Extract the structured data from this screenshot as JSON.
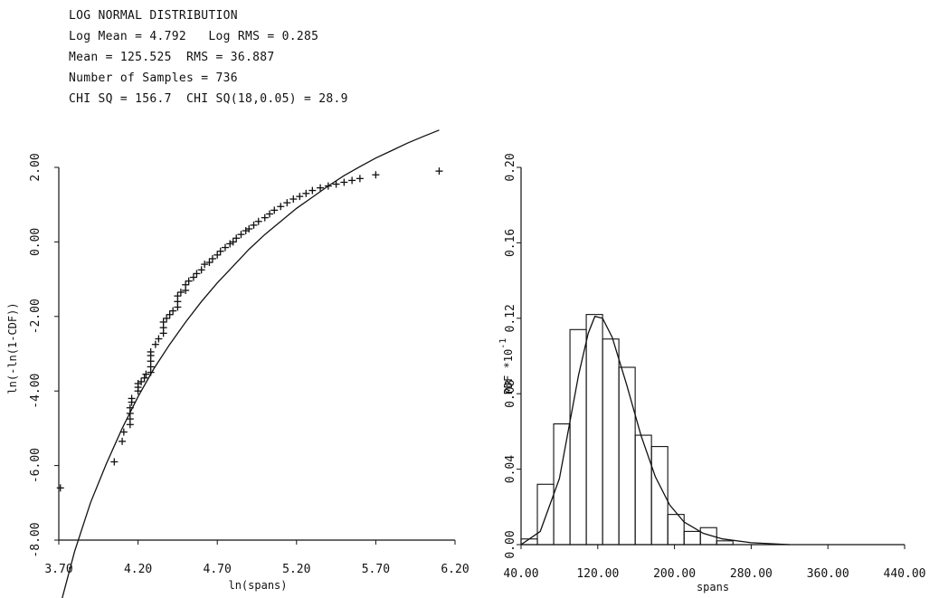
{
  "header": {
    "title": "LOG NORMAL DISTRIBUTION",
    "line1": "Log Mean = 4.792   Log RMS = 0.285",
    "line2": "Mean = 125.525  RMS = 36.887",
    "line3": "Number of Samples = 736",
    "line4": "CHI SQ = 156.7  CHI SQ(18,0.05) = 28.9"
  },
  "chart_data": [
    {
      "type": "scatter",
      "xlabel": "ln(spans)",
      "ylabel": "ln(-ln(1-CDF))",
      "xlim": [
        3.7,
        6.2
      ],
      "ylim": [
        -8.0,
        2.0
      ],
      "x_ticks": [
        "3.70",
        "4.20",
        "4.70",
        "5.20",
        "5.70",
        "6.20"
      ],
      "y_ticks": [
        "-8.00",
        "-6.00",
        "-4.00",
        "-2.00",
        "0.00",
        "2.00"
      ],
      "points": [
        [
          3.71,
          -6.6
        ],
        [
          4.05,
          -5.9
        ],
        [
          4.1,
          -5.35
        ],
        [
          4.11,
          -5.1
        ],
        [
          4.15,
          -4.9
        ],
        [
          4.15,
          -4.75
        ],
        [
          4.15,
          -4.6
        ],
        [
          4.15,
          -4.45
        ],
        [
          4.16,
          -4.3
        ],
        [
          4.16,
          -4.2
        ],
        [
          4.2,
          -4.0
        ],
        [
          4.2,
          -3.9
        ],
        [
          4.2,
          -3.8
        ],
        [
          4.22,
          -3.75
        ],
        [
          4.24,
          -3.65
        ],
        [
          4.25,
          -3.55
        ],
        [
          4.28,
          -3.5
        ],
        [
          4.28,
          -3.35
        ],
        [
          4.28,
          -3.2
        ],
        [
          4.28,
          -3.05
        ],
        [
          4.28,
          -2.95
        ],
        [
          4.31,
          -2.75
        ],
        [
          4.33,
          -2.6
        ],
        [
          4.36,
          -2.45
        ],
        [
          4.36,
          -2.3
        ],
        [
          4.36,
          -2.15
        ],
        [
          4.38,
          -2.05
        ],
        [
          4.4,
          -1.95
        ],
        [
          4.42,
          -1.85
        ],
        [
          4.45,
          -1.75
        ],
        [
          4.45,
          -1.6
        ],
        [
          4.45,
          -1.45
        ],
        [
          4.47,
          -1.35
        ],
        [
          4.5,
          -1.3
        ],
        [
          4.5,
          -1.15
        ],
        [
          4.52,
          -1.05
        ],
        [
          4.55,
          -0.95
        ],
        [
          4.57,
          -0.85
        ],
        [
          4.6,
          -0.75
        ],
        [
          4.62,
          -0.6
        ],
        [
          4.65,
          -0.55
        ],
        [
          4.67,
          -0.45
        ],
        [
          4.7,
          -0.35
        ],
        [
          4.72,
          -0.25
        ],
        [
          4.75,
          -0.15
        ],
        [
          4.78,
          -0.05
        ],
        [
          4.8,
          0.0
        ],
        [
          4.82,
          0.1
        ],
        [
          4.85,
          0.2
        ],
        [
          4.88,
          0.3
        ],
        [
          4.9,
          0.35
        ],
        [
          4.93,
          0.45
        ],
        [
          4.96,
          0.55
        ],
        [
          5.0,
          0.65
        ],
        [
          5.03,
          0.75
        ],
        [
          5.06,
          0.85
        ],
        [
          5.1,
          0.95
        ],
        [
          5.14,
          1.05
        ],
        [
          5.18,
          1.15
        ],
        [
          5.22,
          1.22
        ],
        [
          5.26,
          1.3
        ],
        [
          5.3,
          1.38
        ],
        [
          5.35,
          1.45
        ],
        [
          5.4,
          1.5
        ],
        [
          5.45,
          1.55
        ],
        [
          5.5,
          1.6
        ],
        [
          5.55,
          1.65
        ],
        [
          5.6,
          1.7
        ],
        [
          5.7,
          1.8
        ],
        [
          6.1,
          1.9
        ]
      ],
      "fit_curve": [
        [
          3.7,
          -9.9
        ],
        [
          3.8,
          -8.3
        ],
        [
          3.9,
          -7.0
        ],
        [
          4.0,
          -5.95
        ],
        [
          4.1,
          -5.0
        ],
        [
          4.2,
          -4.15
        ],
        [
          4.3,
          -3.4
        ],
        [
          4.4,
          -2.75
        ],
        [
          4.5,
          -2.15
        ],
        [
          4.6,
          -1.6
        ],
        [
          4.7,
          -1.1
        ],
        [
          4.8,
          -0.65
        ],
        [
          4.9,
          -0.2
        ],
        [
          5.0,
          0.2
        ],
        [
          5.1,
          0.55
        ],
        [
          5.2,
          0.9
        ],
        [
          5.3,
          1.2
        ],
        [
          5.4,
          1.5
        ],
        [
          5.5,
          1.78
        ],
        [
          5.6,
          2.02
        ],
        [
          5.7,
          2.25
        ],
        [
          5.8,
          2.45
        ],
        [
          5.9,
          2.65
        ],
        [
          6.0,
          2.83
        ],
        [
          6.1,
          3.0
        ]
      ]
    },
    {
      "type": "bar",
      "xlabel": "spans",
      "ylabel": "PDF *10",
      "ylabel_exp": "-1",
      "xlim": [
        40,
        440
      ],
      "ylim": [
        0.0,
        0.2
      ],
      "x_ticks": [
        "40.00",
        "120.00",
        "200.00",
        "280.00",
        "360.00",
        "440.00"
      ],
      "y_ticks": [
        "0.00",
        "0.04",
        "0.08",
        "0.12",
        "0.16",
        "0.20"
      ],
      "bin_edges": [
        40,
        57,
        74,
        91,
        108,
        125,
        142,
        159,
        176,
        193,
        210,
        227,
        244,
        261
      ],
      "values": [
        0.003,
        0.032,
        0.064,
        0.114,
        0.122,
        0.109,
        0.094,
        0.058,
        0.052,
        0.016,
        0.007,
        0.009,
        0.002
      ],
      "fit_curve": [
        [
          40,
          0.0
        ],
        [
          60,
          0.007
        ],
        [
          80,
          0.035
        ],
        [
          100,
          0.09
        ],
        [
          110,
          0.112
        ],
        [
          117,
          0.121
        ],
        [
          125,
          0.12
        ],
        [
          135,
          0.11
        ],
        [
          150,
          0.085
        ],
        [
          165,
          0.058
        ],
        [
          180,
          0.036
        ],
        [
          195,
          0.021
        ],
        [
          210,
          0.012
        ],
        [
          230,
          0.006
        ],
        [
          250,
          0.003
        ],
        [
          280,
          0.001
        ],
        [
          320,
          0.0
        ]
      ]
    }
  ]
}
